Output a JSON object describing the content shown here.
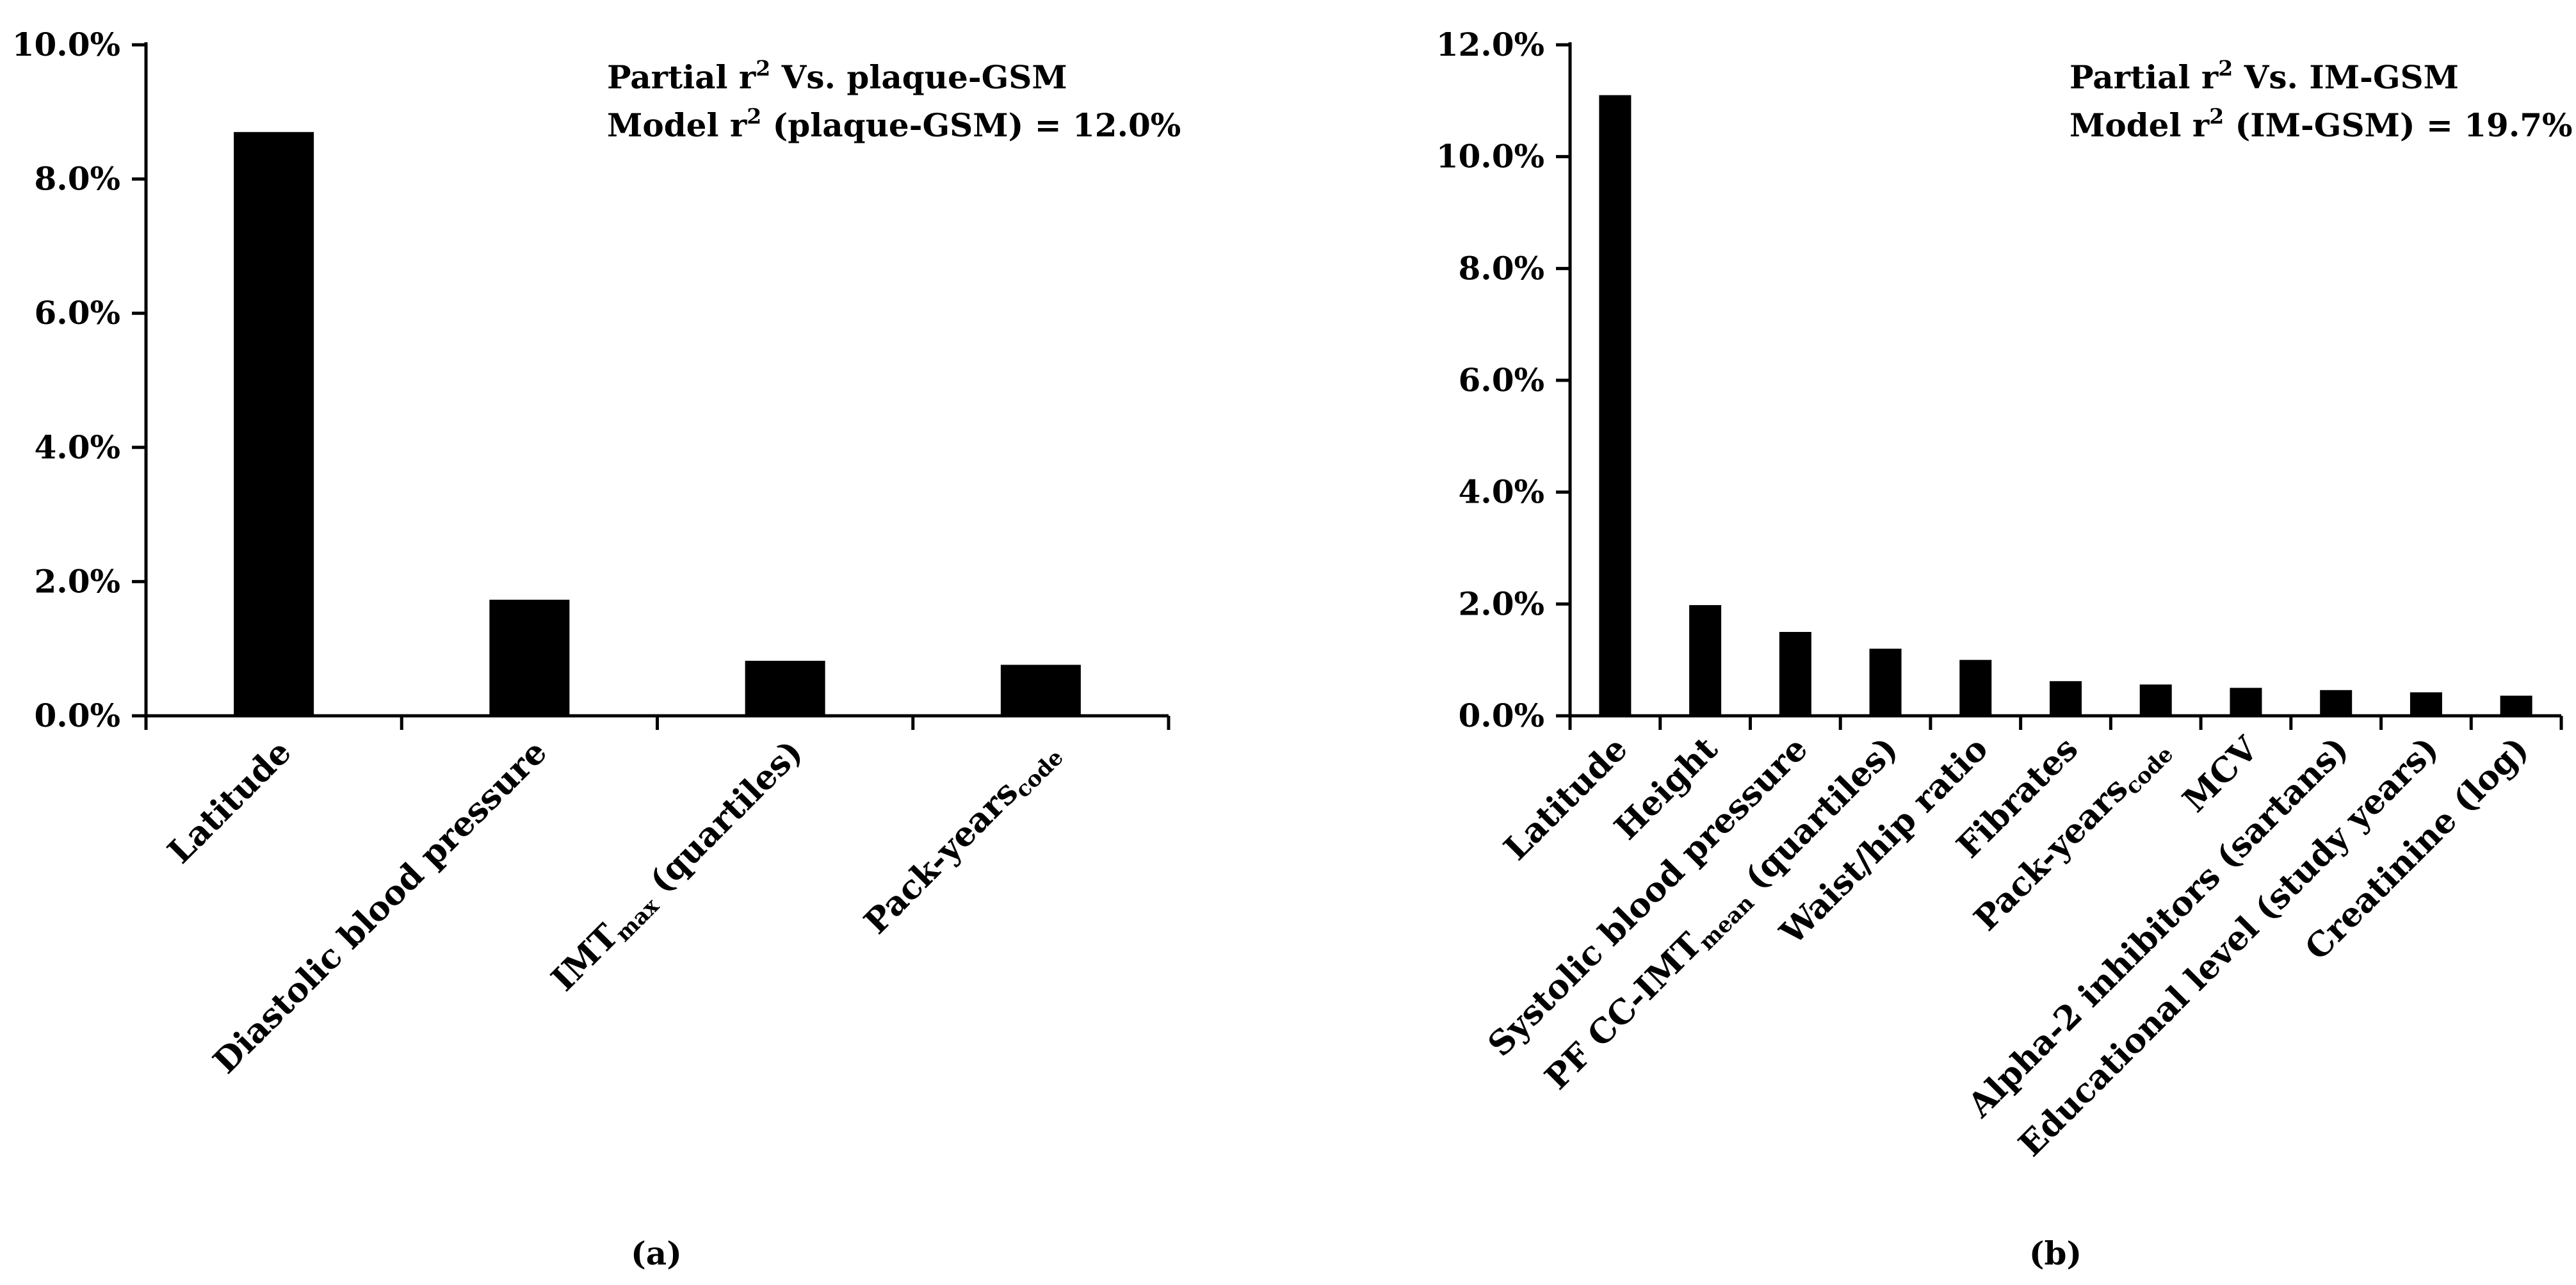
{
  "chart_data": [
    {
      "type": "bar",
      "panel_label": "(a)",
      "annotation": {
        "line1": {
          "pre": "Partial r",
          "sup": "2",
          "post": " Vs. plaque-GSM"
        },
        "line2": {
          "pre": "Model r",
          "sup": "2",
          "post": " (plaque-GSM) = 12.0%"
        }
      },
      "categories": [
        {
          "main": "Latitude",
          "sub": "",
          "tail": ""
        },
        {
          "main": "Diastolic blood pressure",
          "sub": "",
          "tail": ""
        },
        {
          "main": "IMT",
          "sub": "max",
          "tail": " (quartiles)"
        },
        {
          "main": "Pack-years",
          "sub": "code",
          "tail": ""
        }
      ],
      "values": [
        8.7,
        1.73,
        0.82,
        0.76
      ],
      "ylim": [
        0,
        10
      ],
      "yticks": [
        0,
        2,
        4,
        6,
        8,
        10
      ],
      "ytick_labels": [
        "0.0%",
        "2.0%",
        "4.0%",
        "6.0%",
        "8.0%",
        "10.0%"
      ],
      "bar_color": "#000000",
      "grid": false
    },
    {
      "type": "bar",
      "panel_label": "(b)",
      "annotation": {
        "line1": {
          "pre": "Partial r",
          "sup": "2",
          "post": " Vs. IM-GSM"
        },
        "line2": {
          "pre": "Model r",
          "sup": "2",
          "post": " (IM-GSM) = 19.7%"
        }
      },
      "categories": [
        {
          "main": "Latitude",
          "sub": "",
          "tail": ""
        },
        {
          "main": "Height",
          "sub": "",
          "tail": ""
        },
        {
          "main": "Systolic blood pressure",
          "sub": "",
          "tail": ""
        },
        {
          "main": "PF CC-IMT",
          "sub": "mean",
          "tail": " (quartiles)"
        },
        {
          "main": "Waist/hip ratio",
          "sub": "",
          "tail": ""
        },
        {
          "main": "Fibrates",
          "sub": "",
          "tail": ""
        },
        {
          "main": "Pack-years",
          "sub": "code",
          "tail": ""
        },
        {
          "main": "MCV",
          "sub": "",
          "tail": ""
        },
        {
          "main": "Alpha-2 inhibitors (sartans)",
          "sub": "",
          "tail": ""
        },
        {
          "main": "Educational level (study years)",
          "sub": "",
          "tail": ""
        },
        {
          "main": "Creatinine (log)",
          "sub": "",
          "tail": ""
        }
      ],
      "values": [
        11.1,
        1.98,
        1.5,
        1.2,
        1.0,
        0.62,
        0.56,
        0.5,
        0.46,
        0.42,
        0.36
      ],
      "ylim": [
        0,
        12
      ],
      "yticks": [
        0,
        2,
        4,
        6,
        8,
        10,
        12
      ],
      "ytick_labels": [
        "0.0%",
        "2.0%",
        "4.0%",
        "6.0%",
        "8.0%",
        "10.0%",
        "12.0%"
      ],
      "bar_color": "#000000",
      "grid": false
    }
  ]
}
